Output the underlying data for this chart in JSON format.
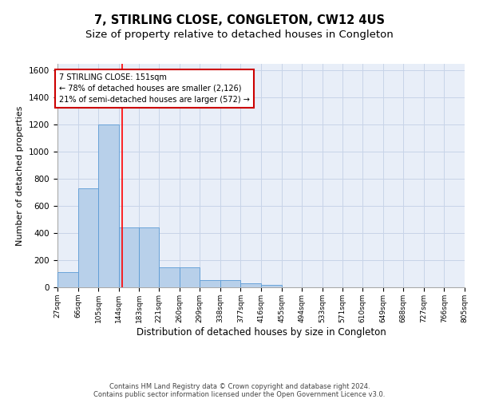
{
  "title1": "7, STIRLING CLOSE, CONGLETON, CW12 4US",
  "title2": "Size of property relative to detached houses in Congleton",
  "xlabel": "Distribution of detached houses by size in Congleton",
  "ylabel": "Number of detached properties",
  "bin_edges": [
    27,
    66,
    105,
    144,
    183,
    221,
    260,
    299,
    338,
    377,
    416,
    455,
    494,
    533,
    571,
    610,
    649,
    688,
    727,
    766,
    805
  ],
  "bar_heights": [
    110,
    730,
    1200,
    440,
    440,
    145,
    145,
    55,
    55,
    30,
    15,
    0,
    0,
    0,
    0,
    0,
    0,
    0,
    0,
    0
  ],
  "bar_color": "#b8d0ea",
  "bar_edge_color": "#5b9bd5",
  "grid_color": "#c8d4e8",
  "bg_color": "#e8eef8",
  "red_line_x": 151,
  "annotation_line1": "7 STIRLING CLOSE: 151sqm",
  "annotation_line2": "← 78% of detached houses are smaller (2,126)",
  "annotation_line3": "21% of semi-detached houses are larger (572) →",
  "annotation_box_color": "#ffffff",
  "annotation_edge_color": "#cc0000",
  "ylim": [
    0,
    1650
  ],
  "yticks": [
    0,
    200,
    400,
    600,
    800,
    1000,
    1200,
    1400,
    1600
  ],
  "footer_line1": "Contains HM Land Registry data © Crown copyright and database right 2024.",
  "footer_line2": "Contains public sector information licensed under the Open Government Licence v3.0.",
  "title1_fontsize": 10.5,
  "title2_fontsize": 9.5,
  "xlabel_fontsize": 8.5,
  "ylabel_fontsize": 8
}
